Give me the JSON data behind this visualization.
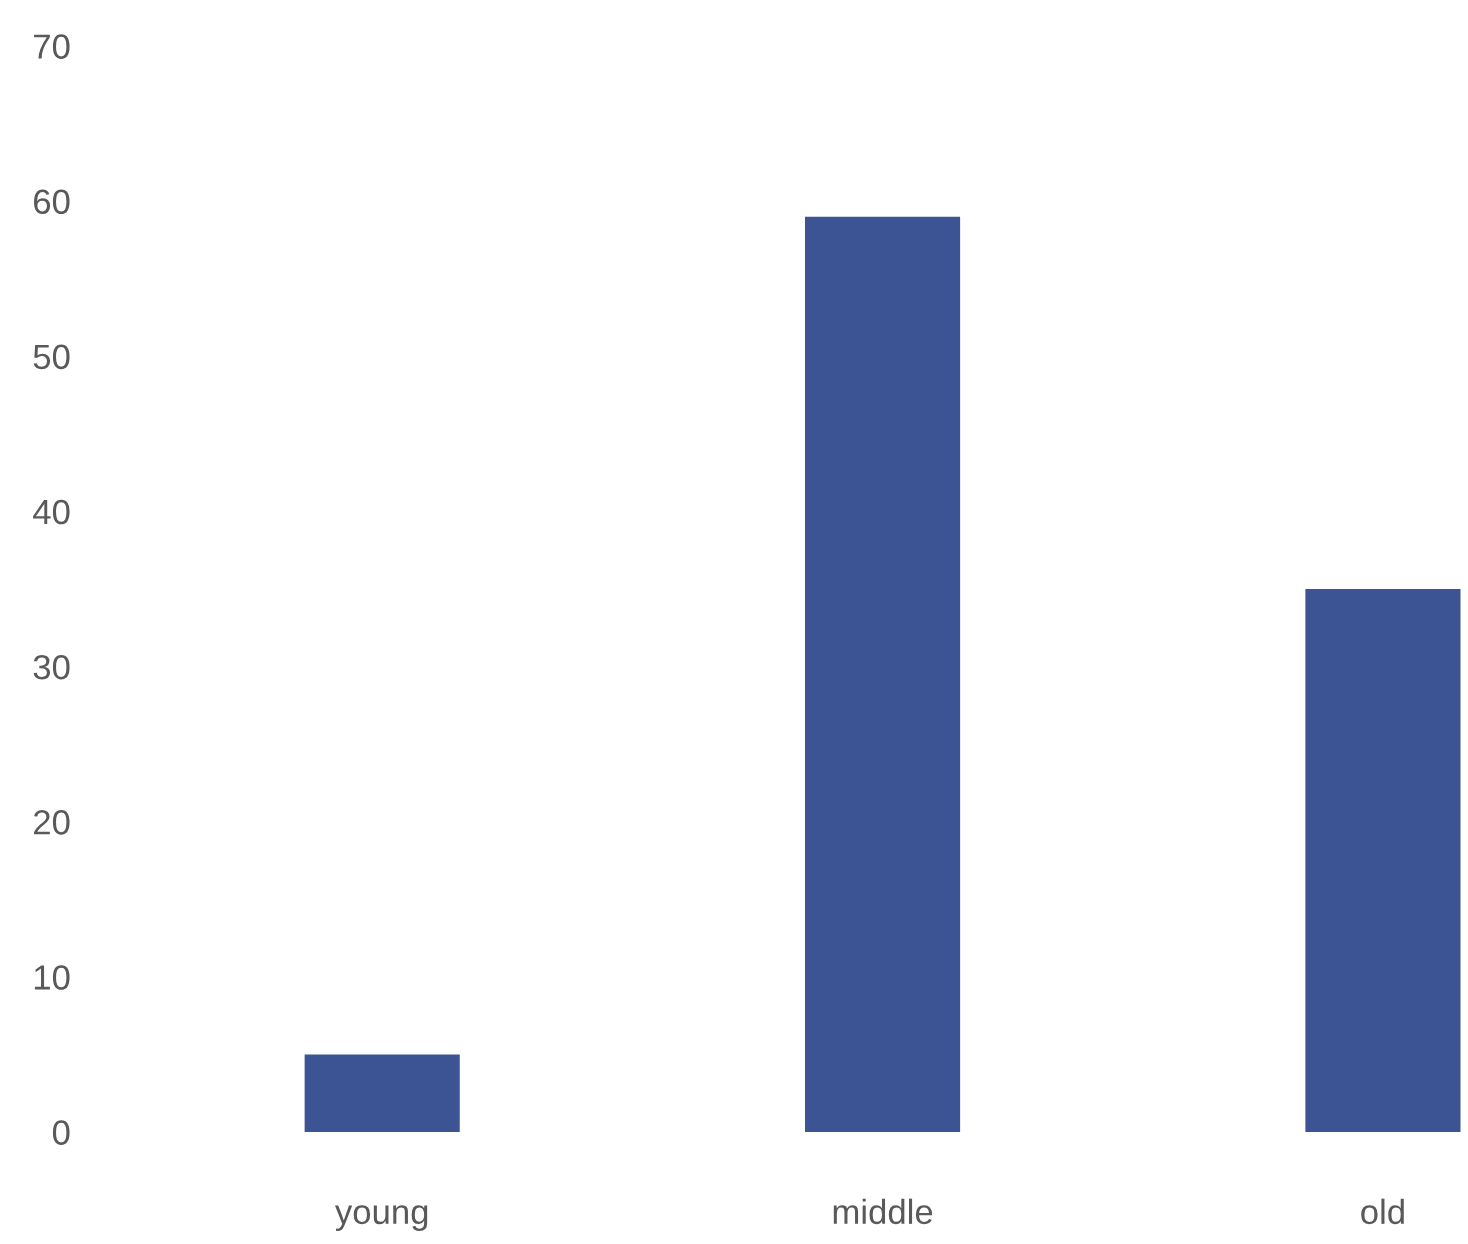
{
  "chart_data": {
    "type": "bar",
    "categories": [
      "young",
      "middle",
      "old"
    ],
    "values": [
      5,
      59,
      35
    ],
    "color": "#3d5494",
    "ylim": [
      0,
      70
    ],
    "yticks": [
      0,
      10,
      20,
      30,
      40,
      50,
      60,
      70
    ]
  }
}
